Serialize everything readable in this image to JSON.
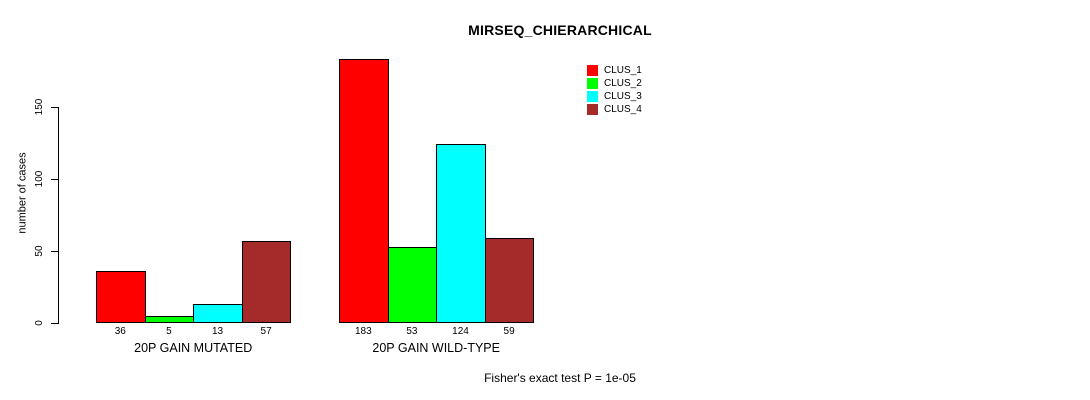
{
  "title": "MIRSEQ_CHIERARCHICAL",
  "y_axis": {
    "label": "number of cases",
    "ticks": [
      0,
      50,
      100,
      150
    ]
  },
  "footer": "Fisher's exact test P = 1e-05",
  "legend": {
    "items": [
      {
        "label": "CLUS_1",
        "color": "#FF0000"
      },
      {
        "label": "CLUS_2",
        "color": "#00FF00"
      },
      {
        "label": "CLUS_3",
        "color": "#00FFFF"
      },
      {
        "label": "CLUS_4",
        "color": "#A52A2A"
      }
    ]
  },
  "chart_data": {
    "type": "bar",
    "title": "MIRSEQ_CHIERARCHICAL",
    "xlabel": "",
    "ylabel": "number of cases",
    "ylim": [
      0,
      185
    ],
    "y_ticks": [
      0,
      50,
      100,
      150
    ],
    "grid": false,
    "legend_position": "top-center-inner",
    "categories": [
      "20P GAIN MUTATED",
      "20P GAIN WILD-TYPE"
    ],
    "series": [
      {
        "name": "CLUS_1",
        "color": "#FF0000",
        "values": [
          36,
          183
        ]
      },
      {
        "name": "CLUS_2",
        "color": "#00FF00",
        "values": [
          5,
          53
        ]
      },
      {
        "name": "CLUS_3",
        "color": "#00FFFF",
        "values": [
          13,
          124
        ]
      },
      {
        "name": "CLUS_4",
        "color": "#A52A2A",
        "values": [
          57,
          59
        ]
      }
    ],
    "bar_value_labels": [
      [
        36,
        5,
        13,
        57
      ],
      [
        183,
        53,
        124,
        59
      ]
    ],
    "annotation": "Fisher's exact test P = 1e-05"
  }
}
